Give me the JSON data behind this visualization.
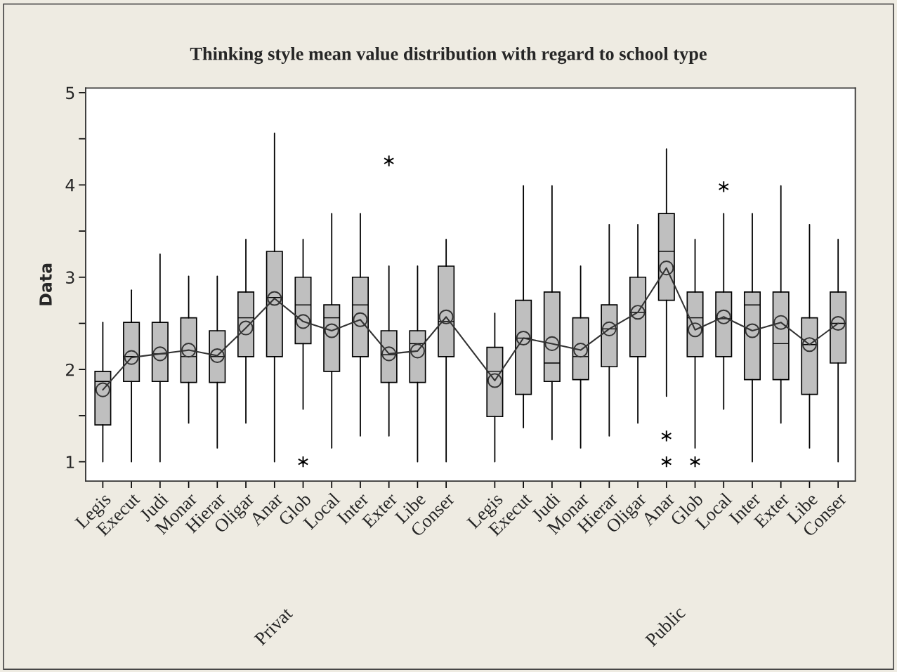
{
  "chart_data": {
    "type": "box",
    "title": "Thinking style mean value distribution with regard to school type",
    "ylabel": "Data",
    "categories": [
      "Legis",
      "Execut",
      "Judi",
      "Monar",
      "Hierar",
      "Oligar",
      "Anar",
      "Glob",
      "Local",
      "Inter",
      "Exter",
      "Libe",
      "Conser",
      "Legis",
      "Execut",
      "Judi",
      "Monar",
      "Hierar",
      "Oligar",
      "Anar",
      "Glob",
      "Local",
      "Inter",
      "Exter",
      "Libe",
      "Conser"
    ],
    "annotations": [
      "Privat",
      "Public"
    ],
    "color": "#bfbfbf",
    "marker": "circle",
    "ylim": [
      0.79,
      5.05
    ],
    "yticks": [
      1,
      {
        "value": 1.5,
        "label": null
      },
      2,
      {
        "value": 2.5,
        "label": null
      },
      3,
      {
        "value": 3.5,
        "label": null
      },
      4,
      {
        "value": 4.5,
        "label": null
      },
      5
    ],
    "grid": false,
    "series": [
      {
        "type": "line",
        "color": "#333333",
        "values": [
          1.78,
          2.13,
          2.17,
          2.21,
          2.15,
          2.45,
          2.77,
          2.52,
          2.42,
          2.54,
          2.17,
          2.2,
          2.57,
          1.88,
          2.34,
          2.28,
          2.21,
          2.44,
          2.62,
          3.1,
          2.43,
          2.57,
          2.42,
          2.51,
          2.27,
          2.5
        ]
      }
    ],
    "boxes": [
      {
        "low": 1.0,
        "q1": 1.4,
        "median": 1.87,
        "q3": 1.98,
        "high": 2.51
      },
      {
        "low": 1.0,
        "q1": 1.87,
        "median": 2.14,
        "q3": 2.51,
        "high": 2.86
      },
      {
        "low": 1.0,
        "q1": 1.87,
        "median": 2.17,
        "q3": 2.51,
        "high": 3.25
      },
      {
        "low": 1.42,
        "q1": 1.86,
        "median": 2.14,
        "q3": 2.56,
        "high": 3.01
      },
      {
        "low": 1.15,
        "q1": 1.86,
        "median": 2.14,
        "q3": 2.42,
        "high": 3.01
      },
      {
        "low": 1.42,
        "q1": 2.14,
        "median": 2.56,
        "q3": 2.84,
        "high": 3.41
      },
      {
        "low": 1.0,
        "q1": 2.14,
        "median": 2.78,
        "q3": 3.28,
        "high": 4.56
      },
      {
        "low": 1.57,
        "q1": 2.28,
        "median": 2.7,
        "q3": 3.0,
        "high": 3.41,
        "outliers": [
          1.0
        ]
      },
      {
        "low": 1.15,
        "q1": 1.98,
        "median": 2.56,
        "q3": 2.7,
        "high": 3.69
      },
      {
        "low": 1.28,
        "q1": 2.14,
        "median": 2.7,
        "q3": 3.0,
        "high": 3.69
      },
      {
        "low": 1.28,
        "q1": 1.86,
        "median": 2.16,
        "q3": 2.42,
        "high": 3.12,
        "outliers": [
          4.26
        ]
      },
      {
        "low": 1.0,
        "q1": 1.86,
        "median": 2.28,
        "q3": 2.42,
        "high": 3.12
      },
      {
        "low": 1.0,
        "q1": 2.14,
        "median": 2.52,
        "q3": 3.12,
        "high": 3.41
      },
      {
        "low": 1.0,
        "q1": 1.49,
        "median": 1.98,
        "q3": 2.24,
        "high": 2.61
      },
      {
        "low": 1.37,
        "q1": 1.73,
        "median": 2.34,
        "q3": 2.75,
        "high": 3.99
      },
      {
        "low": 1.24,
        "q1": 1.87,
        "median": 2.07,
        "q3": 2.84,
        "high": 3.99
      },
      {
        "low": 1.15,
        "q1": 1.89,
        "median": 2.14,
        "q3": 2.56,
        "high": 3.12
      },
      {
        "low": 1.28,
        "q1": 2.03,
        "median": 2.44,
        "q3": 2.7,
        "high": 3.57
      },
      {
        "low": 1.42,
        "q1": 2.14,
        "median": 2.62,
        "q3": 3.0,
        "high": 3.57
      },
      {
        "low": 1.71,
        "q1": 2.75,
        "median": 3.28,
        "q3": 3.69,
        "high": 4.39,
        "outliers": [
          1.28,
          1.0
        ]
      },
      {
        "low": 1.15,
        "q1": 2.14,
        "median": 2.56,
        "q3": 2.84,
        "high": 3.41,
        "outliers": [
          1.0
        ]
      },
      {
        "low": 1.57,
        "q1": 2.14,
        "median": 2.55,
        "q3": 2.84,
        "high": 3.69,
        "outliers": [
          3.98
        ]
      },
      {
        "low": 1.0,
        "q1": 1.89,
        "median": 2.7,
        "q3": 2.84,
        "high": 3.69
      },
      {
        "low": 1.42,
        "q1": 1.89,
        "median": 2.28,
        "q3": 2.84,
        "high": 3.99
      },
      {
        "low": 1.15,
        "q1": 1.73,
        "median": 2.27,
        "q3": 2.56,
        "high": 3.57
      },
      {
        "low": 1.0,
        "q1": 2.07,
        "median": 2.5,
        "q3": 2.84,
        "high": 3.41
      }
    ]
  }
}
